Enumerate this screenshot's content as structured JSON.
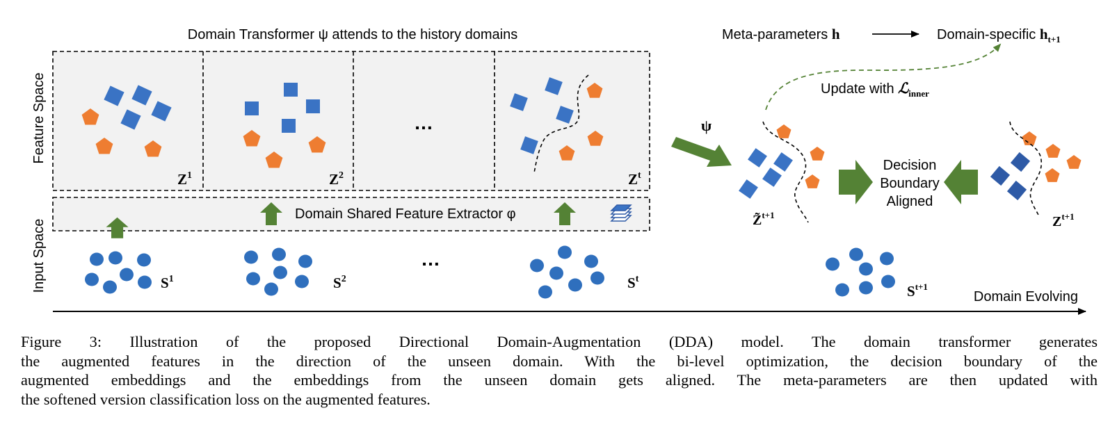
{
  "title": "Domain Transformer ψ attends to the history domains",
  "axes": {
    "feature_space": "Feature Space",
    "input_space": "Input Space",
    "domain_evolving": "Domain Evolving"
  },
  "feature_panels": [
    {
      "label": "Z",
      "sup": "1"
    },
    {
      "label": "Z",
      "sup": "2"
    },
    {
      "label": "…",
      "sup": ""
    },
    {
      "label": "Z",
      "sup": "t"
    }
  ],
  "extractor_label": "Domain Shared Feature Extractor φ",
  "input_sets": [
    {
      "label": "S",
      "sup": "1"
    },
    {
      "label": "S",
      "sup": "2"
    },
    {
      "label": "…",
      "sup": ""
    },
    {
      "label": "S",
      "sup": "t"
    },
    {
      "label": "S",
      "sup": "t+1"
    }
  ],
  "psi_label": "ψ",
  "meta": {
    "meta_prefix": "Meta-parameters ",
    "meta_symbol": "h",
    "specific_prefix": "Domain-specific ",
    "specific_symbol": "h",
    "specific_sub": "t+1",
    "update_prefix": "Update with ",
    "update_symbol": "ℒ",
    "update_sub": "inner"
  },
  "decision": [
    "Decision",
    "Boundary",
    "Aligned"
  ],
  "aug_label": {
    "label": "Z̃",
    "sup": "t+1"
  },
  "target_label": {
    "label": "Z",
    "sup": "t+1"
  },
  "colors": {
    "blue": "#3a73c4",
    "dark_blue": "#2e5aa6",
    "orange": "#ee7d31",
    "green": "#548235",
    "panel_bg": "#f2f2f2",
    "circle_blue": "#2f6fbd"
  },
  "caption": [
    "Figure 3: Illustration of the proposed Directional Domain-Augmentation (DDA) model. The domain transformer generates",
    "the augmented features in the direction of the unseen domain. With the bi-level optimization, the decision boundary of the",
    "augmented embeddings and the embeddings from the unseen domain gets aligned. The meta-parameters are then updated with",
    "the softened version classification loss on the augmented features."
  ]
}
